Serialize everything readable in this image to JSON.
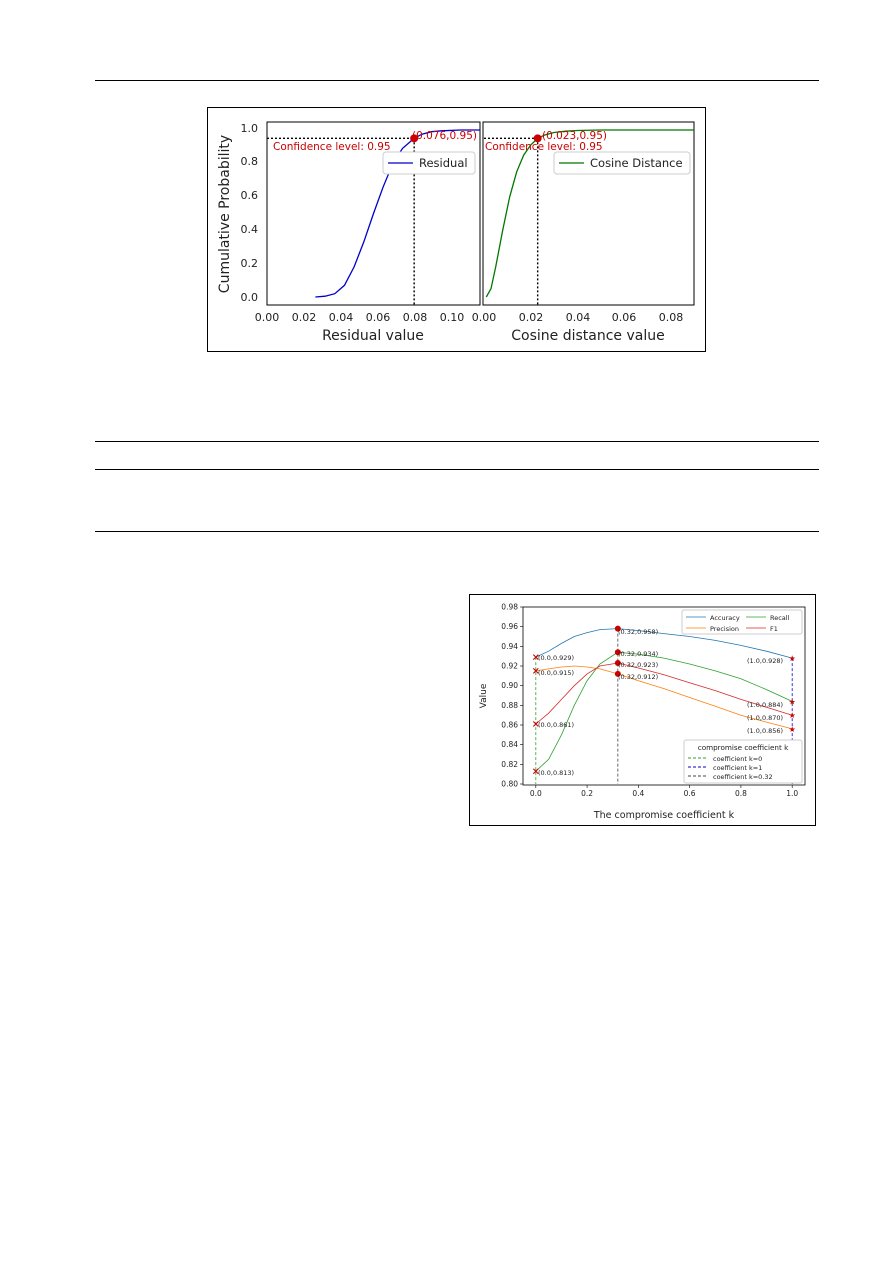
{
  "figure1": {
    "ylabel": "Cumulative Probability",
    "yticks": [
      "0.0",
      "0.2",
      "0.4",
      "0.6",
      "0.8",
      "1.0"
    ],
    "left": {
      "xlabel": "Residual value",
      "xticks": [
        "0.00",
        "0.02",
        "0.04",
        "0.06",
        "0.08",
        "0.10"
      ],
      "legend": "Residual",
      "point_label": "(0.076,0.95)",
      "confidence_label": "Confidence level: 0.95",
      "line_color": "#0000cc"
    },
    "right": {
      "xlabel": "Cosine distance value",
      "xticks": [
        "0.00",
        "0.02",
        "0.04",
        "0.06",
        "0.08"
      ],
      "legend": "Cosine Distance",
      "point_label": "(0.023,0.95)",
      "confidence_label": "Confidence level: 0.95",
      "line_color": "#007700"
    },
    "highlight_color": "#cc0000"
  },
  "figure2": {
    "xlabel": "The compromise coefficient k",
    "ylabel": "Value",
    "xticks": [
      "0.0",
      "0.2",
      "0.4",
      "0.6",
      "0.8",
      "1.0"
    ],
    "yticks": [
      "0.80",
      "0.82",
      "0.84",
      "0.86",
      "0.88",
      "0.90",
      "0.92",
      "0.94",
      "0.96",
      "0.98"
    ],
    "legend_metrics": [
      "Accuracy",
      "Recall",
      "Precision",
      "F1"
    ],
    "legend_coeff_title": "compromise coefficient k",
    "legend_coeffs": [
      "coefficient k=0",
      "coefficient k=1",
      "coefficient k=0.32"
    ],
    "labels_k0": [
      "(0.0,0.929)",
      "(0.0,0.915)",
      "(0.0,0.861)",
      "(0.0,0.813)"
    ],
    "labels_k032": [
      "(0.32,0.958)",
      "(0.32,0.934)",
      "(0.32,0.923)",
      "(0.32,0.912)"
    ],
    "labels_k1": [
      "(1.0,0.928)",
      "(1.0,0.884)",
      "(1.0,0.870)",
      "(1.0,0.856)"
    ]
  },
  "chart_data": [
    {
      "type": "line",
      "ylabel": "Cumulative Probability",
      "xlabel": "Residual value",
      "xlim": [
        0.0,
        0.11
      ],
      "ylim": [
        0.0,
        1.0
      ],
      "series": [
        {
          "name": "Residual",
          "x": [
            0.025,
            0.03,
            0.035,
            0.04,
            0.045,
            0.05,
            0.055,
            0.06,
            0.065,
            0.07,
            0.076,
            0.08,
            0.085,
            0.09,
            0.1,
            0.11
          ],
          "y": [
            0.0,
            0.005,
            0.02,
            0.07,
            0.18,
            0.33,
            0.5,
            0.66,
            0.8,
            0.89,
            0.95,
            0.975,
            0.99,
            0.995,
            1.0,
            1.0
          ]
        }
      ],
      "annotations": [
        "(0.076,0.95)",
        "Confidence level: 0.95"
      ]
    },
    {
      "type": "line",
      "xlabel": "Cosine distance value",
      "xlim": [
        0.0,
        0.09
      ],
      "ylim": [
        0.0,
        1.0
      ],
      "series": [
        {
          "name": "Cosine Distance",
          "x": [
            0.001,
            0.003,
            0.005,
            0.008,
            0.011,
            0.014,
            0.017,
            0.02,
            0.023,
            0.026,
            0.03,
            0.035,
            0.04,
            0.05,
            0.06,
            0.09
          ],
          "y": [
            0.0,
            0.05,
            0.18,
            0.4,
            0.6,
            0.75,
            0.85,
            0.91,
            0.95,
            0.97,
            0.985,
            0.993,
            0.997,
            1.0,
            1.0,
            1.0
          ]
        }
      ],
      "annotations": [
        "(0.023,0.95)",
        "Confidence level: 0.95"
      ]
    },
    {
      "type": "line",
      "xlabel": "The compromise coefficient k",
      "ylabel": "Value",
      "xlim": [
        -0.05,
        1.05
      ],
      "ylim": [
        0.8,
        0.98
      ],
      "x": [
        0.0,
        0.05,
        0.1,
        0.15,
        0.2,
        0.25,
        0.32,
        0.4,
        0.5,
        0.6,
        0.7,
        0.8,
        0.9,
        1.0
      ],
      "series": [
        {
          "name": "Accuracy",
          "values": [
            0.929,
            0.935,
            0.943,
            0.95,
            0.954,
            0.957,
            0.958,
            0.956,
            0.953,
            0.95,
            0.946,
            0.941,
            0.935,
            0.928
          ]
        },
        {
          "name": "Recall",
          "values": [
            0.813,
            0.825,
            0.85,
            0.88,
            0.905,
            0.922,
            0.934,
            0.932,
            0.928,
            0.922,
            0.915,
            0.907,
            0.896,
            0.884
          ]
        },
        {
          "name": "Precision",
          "values": [
            0.915,
            0.917,
            0.919,
            0.92,
            0.919,
            0.917,
            0.912,
            0.905,
            0.897,
            0.888,
            0.879,
            0.87,
            0.863,
            0.856
          ]
        },
        {
          "name": "F1",
          "values": [
            0.861,
            0.872,
            0.886,
            0.9,
            0.912,
            0.92,
            0.923,
            0.918,
            0.911,
            0.903,
            0.895,
            0.886,
            0.878,
            0.87
          ]
        }
      ],
      "vlines": [
        0.0,
        1.0,
        0.32
      ]
    }
  ]
}
